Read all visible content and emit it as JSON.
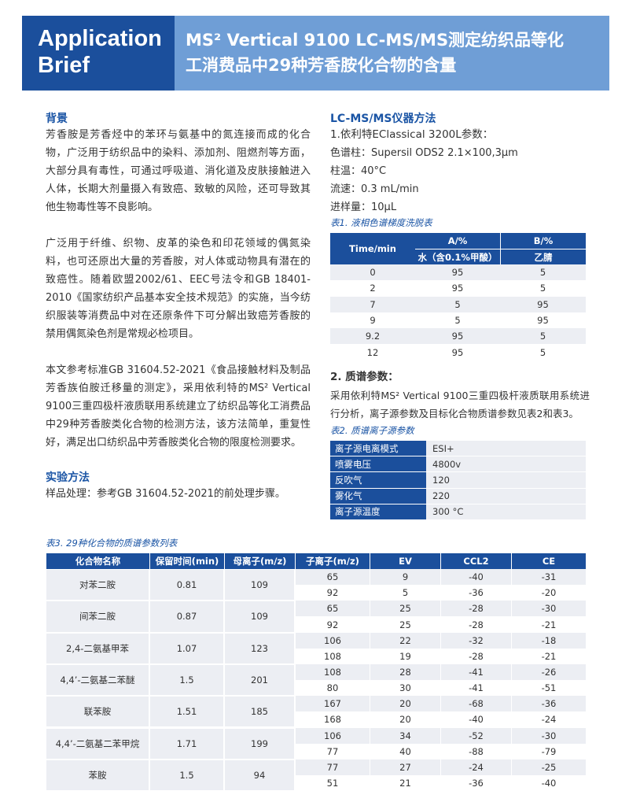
{
  "header": {
    "badge": [
      "Application",
      "Brief"
    ],
    "title": [
      "MS² Vertical 9100 LC-MS/MS测定纺织品等化",
      "工消费品中29种芳香胺化合物的含量"
    ]
  },
  "background": {
    "heading": "背景",
    "paragraphs": [
      "芳香胺是芳香烃中的苯环与氨基中的氮连接而成的化合物，广泛用于纺织品中的染料、添加剂、阻燃剂等方面，大部分具有毒性，可通过呼吸道、消化道及皮肤接触进入人体，长期大剂量摄入有致癌、致敏的风险，还可导致其他生物毒性等不良影响。",
      "广泛用于纤维、织物、皮革的染色和印花领域的偶氮染料，也可还原出大量的芳香胺，对人体或动物具有潜在的致癌性。随着欧盟2002/61、EEC号法令和GB 18401-2010《国家纺织产品基本安全技术规范》的实施，当今纺织服装等消费品中对在还原条件下可分解出致癌芳香胺的禁用偶氮染色剂是常规必检项目。",
      "本文参考标准GB 31604.52-2021《食品接触材料及制品芳香族伯胺迁移量的测定》，采用依利特的MS² Vertical 9100三重四极杆液质联用系统建立了纺织品等化工消费品中29种芳香胺类化合物的检测方法，该方法简单，重复性好，满足出口纺织品中芳香胺类化合物的限度检测要求。"
    ]
  },
  "method": {
    "heading": "实验方法",
    "text": "样品处理：参考GB 31604.52-2021的前处理步骤。"
  },
  "instrument": {
    "heading": "LC-MS/MS仪器方法",
    "sub1": "1.依利特EClassical 3200L参数：",
    "params": [
      "色谱柱：Supersil ODS2 2.1×100,3μm",
      "柱温：40°C",
      "流速：0.3 mL/min",
      "进样量：10μL"
    ],
    "table1": {
      "caption": "表1. 液相色谱梯度洗脱表",
      "time": "Time/min",
      "a": "A/%",
      "a_sub": "水（含0.1%甲酸）",
      "b": "B/%",
      "b_sub": "乙腈",
      "rows": [
        [
          0,
          95,
          5
        ],
        [
          2,
          95,
          5
        ],
        [
          7,
          5,
          95
        ],
        [
          9,
          5,
          95
        ],
        [
          9.2,
          95,
          5
        ],
        [
          12,
          95,
          5
        ]
      ]
    },
    "sub2": "2. 质谱参数：",
    "text": "采用依利特MS² Vertical 9100三重四极杆液质联用系统进行分析，离子源参数及目标化合物质谱参数见表2和表3。",
    "table2": {
      "caption": "表2. 质谱离子源参数",
      "rows": [
        [
          "离子源电离模式",
          "ESI+"
        ],
        [
          "喷雾电压",
          "4800v"
        ],
        [
          "反吹气",
          120
        ],
        [
          "雾化气",
          220
        ],
        [
          "离子源温度",
          "300 °C"
        ]
      ]
    }
  },
  "table3": {
    "caption": "表3. 29种化合物的质谱参数列表",
    "header": [
      "化合物名称",
      "保留时间(min)",
      "母离子(m/z)",
      "子离子(m/z)",
      "EV",
      "CCL2",
      "CE"
    ],
    "compounds": [
      {
        "name": "对苯二胺",
        "rt": 0.81,
        "parent": 109,
        "transitions": [
          [
            65,
            9,
            -40,
            -31
          ],
          [
            92,
            5,
            -36,
            -20
          ]
        ]
      },
      {
        "name": "间苯二胺",
        "rt": 0.87,
        "parent": 109,
        "transitions": [
          [
            65,
            25,
            -28,
            -30
          ],
          [
            92,
            25,
            -28,
            -21
          ]
        ]
      },
      {
        "name": "2,4-二氨基甲苯",
        "rt": 1.07,
        "parent": 123,
        "transitions": [
          [
            106,
            22,
            -32,
            -18
          ],
          [
            108,
            19,
            -28,
            -21
          ]
        ]
      },
      {
        "name": "4,4’-二氨基二苯醚",
        "rt": 1.5,
        "parent": 201,
        "transitions": [
          [
            108,
            28,
            -41,
            -26
          ],
          [
            80,
            30,
            -41,
            -51
          ]
        ]
      },
      {
        "name": "联苯胺",
        "rt": 1.51,
        "parent": 185,
        "transitions": [
          [
            167,
            20,
            -68,
            -36
          ],
          [
            168,
            20,
            -40,
            -24
          ]
        ]
      },
      {
        "name": "4,4’-二氨基二苯甲烷",
        "rt": 1.71,
        "parent": 199,
        "transitions": [
          [
            106,
            34,
            -52,
            -30
          ],
          [
            77,
            40,
            -88,
            -79
          ]
        ]
      },
      {
        "name": "苯胺",
        "rt": 1.5,
        "parent": 94,
        "transitions": [
          [
            77,
            27,
            -24,
            -25
          ],
          [
            51,
            21,
            -36,
            -40
          ]
        ]
      }
    ]
  }
}
